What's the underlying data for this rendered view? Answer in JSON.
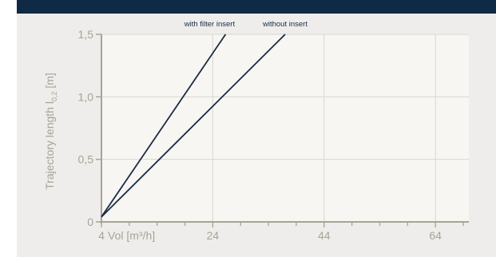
{
  "chart_data": {
    "type": "line",
    "ylabel_main": "Trajectory length  l",
    "ylabel_sub": "0,2",
    "ylabel_unit": " [m]",
    "xlabel": "Vol [m³/h]",
    "xlim": [
      4,
      70
    ],
    "ylim": [
      0,
      1.5
    ],
    "x_ticks": [
      {
        "value": 4,
        "label": "4"
      },
      {
        "value": 24,
        "label": "24"
      },
      {
        "value": 44,
        "label": "44"
      },
      {
        "value": 64,
        "label": "64"
      }
    ],
    "y_ticks": [
      {
        "value": 0,
        "label": "0"
      },
      {
        "value": 0.5,
        "label": "0,5"
      },
      {
        "value": 1.0,
        "label": "1,0"
      },
      {
        "value": 1.5,
        "label": "1,5"
      }
    ],
    "x_grid_values": [
      24,
      44,
      64
    ],
    "x_minor_ticks": [
      4,
      9,
      14,
      19,
      24,
      29,
      34,
      39,
      44,
      49,
      54,
      59,
      64,
      69
    ],
    "y_grid_values": [
      0.5,
      1.0,
      1.5
    ],
    "series": [
      {
        "name": "with filter insert",
        "x": [
          4,
          26.3
        ],
        "y": [
          0.04,
          1.5
        ]
      },
      {
        "name": "without insert",
        "x": [
          4,
          37.0
        ],
        "y": [
          0.04,
          1.5
        ]
      }
    ],
    "grid": true
  },
  "colors": {
    "panel_bg": "#eeedeb",
    "top_bar": "#0f2a44",
    "plot_bg": "#f7f6f3",
    "axis": "#a9a395",
    "grid": "#d9d6cf",
    "line": "#1b2c44",
    "text": "#a9a395"
  }
}
